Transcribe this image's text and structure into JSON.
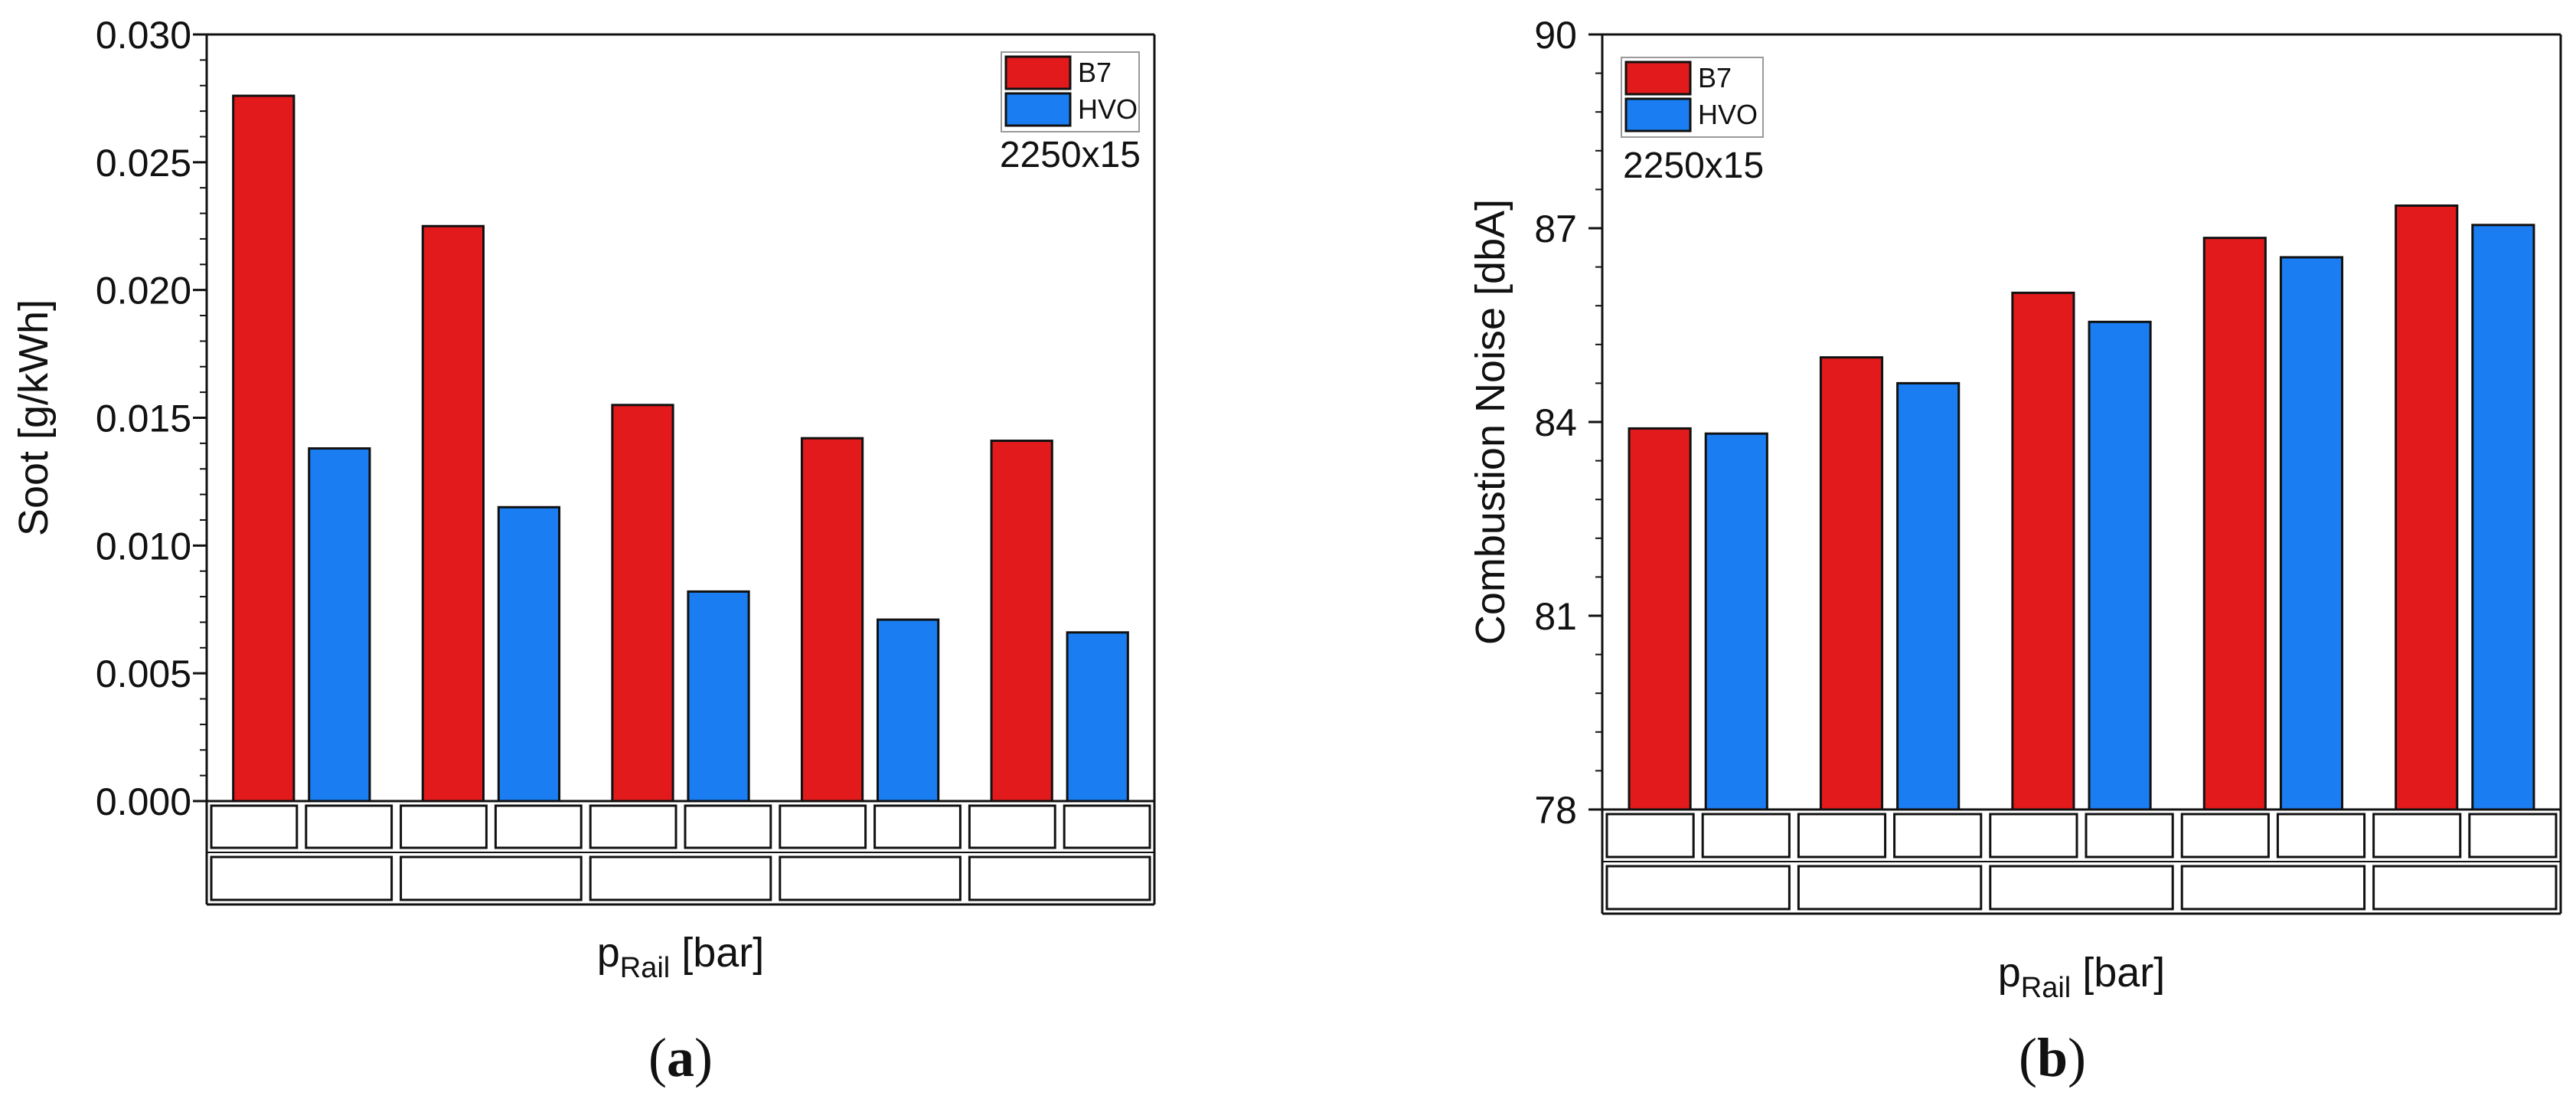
{
  "colors": {
    "B7": "#e31a1c",
    "HVO": "#1a7ef2",
    "axis": "#111111",
    "background": "#ffffff"
  },
  "chart_data": [
    {
      "type": "bar",
      "panel": "(a)",
      "panel_letter": "a",
      "title": "",
      "ylabel": "Soot [g/kWh]",
      "xlabel": {
        "base": "p",
        "sub": "Rail",
        "tail": " [bar]"
      },
      "ylim": [
        0,
        0.03
      ],
      "y_ticks": [
        0,
        0.005,
        0.01,
        0.015,
        0.02,
        0.025,
        0.03
      ],
      "y_tick_labels": [
        "0.000",
        "0.005",
        "0.010",
        "0.015",
        "0.020",
        "0.025",
        "0.030"
      ],
      "groups": 5,
      "series": [
        {
          "name": "B7",
          "color": "#e31a1c",
          "values": [
            0.0276,
            0.0225,
            0.0155,
            0.0142,
            0.0141
          ]
        },
        {
          "name": "HVO",
          "color": "#1a7ef2",
          "values": [
            0.0138,
            0.0115,
            0.0082,
            0.0071,
            0.0066
          ]
        }
      ],
      "legend": {
        "position": "top-right",
        "entries": [
          "B7",
          "HVO"
        ]
      },
      "annotation": "2250x15"
    },
    {
      "type": "bar",
      "panel": "(b)",
      "panel_letter": "b",
      "title": "",
      "ylabel": "Combustion Noise [dbA]",
      "xlabel": {
        "base": "p",
        "sub": "Rail",
        "tail": " [bar]"
      },
      "ylim": [
        78,
        90
      ],
      "y_ticks": [
        78,
        81,
        84,
        87,
        90
      ],
      "y_tick_labels": [
        "78",
        "81",
        "84",
        "87",
        "90"
      ],
      "groups": 5,
      "series": [
        {
          "name": "B7",
          "color": "#e31a1c",
          "values": [
            83.9,
            85.0,
            86.0,
            86.85,
            87.35
          ]
        },
        {
          "name": "HVO",
          "color": "#1a7ef2",
          "values": [
            83.82,
            84.6,
            85.55,
            86.55,
            87.05
          ]
        }
      ],
      "legend": {
        "position": "top-left",
        "entries": [
          "B7",
          "HVO"
        ]
      },
      "annotation": "2250x15"
    }
  ]
}
